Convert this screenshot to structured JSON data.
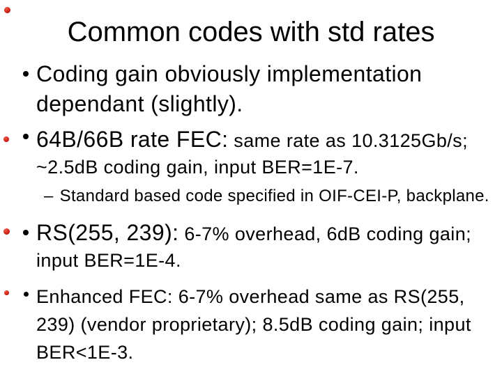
{
  "slide": {
    "title": "Common codes with std rates",
    "bullets": {
      "b1": {
        "line1": "Coding gain obviously implementation",
        "line2": "dependant (slightly)."
      },
      "b2": {
        "head": "64B/66B rate FEC:",
        "tail": "same rate as 10.3125Gb/s;",
        "line2": "~2.5dB coding gain, input BER=1E-7.",
        "sub": {
          "dash": "–",
          "text": "Standard based code specified in OIF-CEI-P, backplane."
        }
      },
      "b3": {
        "head": "RS(255, 239):",
        "tail": "6-7% overhead, 6dB coding gain;",
        "line2": "input BER=1E-4."
      },
      "b4": {
        "line1": "Enhanced FEC: 6-7% overhead same as RS(255,",
        "line2": "239) (vendor proprietary); 8.5dB coding gain; input",
        "line3": "BER<1E-3."
      }
    },
    "colors": {
      "background": "#ffffff",
      "text": "#000000",
      "bullet": "#000000",
      "decor_dot": "#d02318"
    }
  }
}
